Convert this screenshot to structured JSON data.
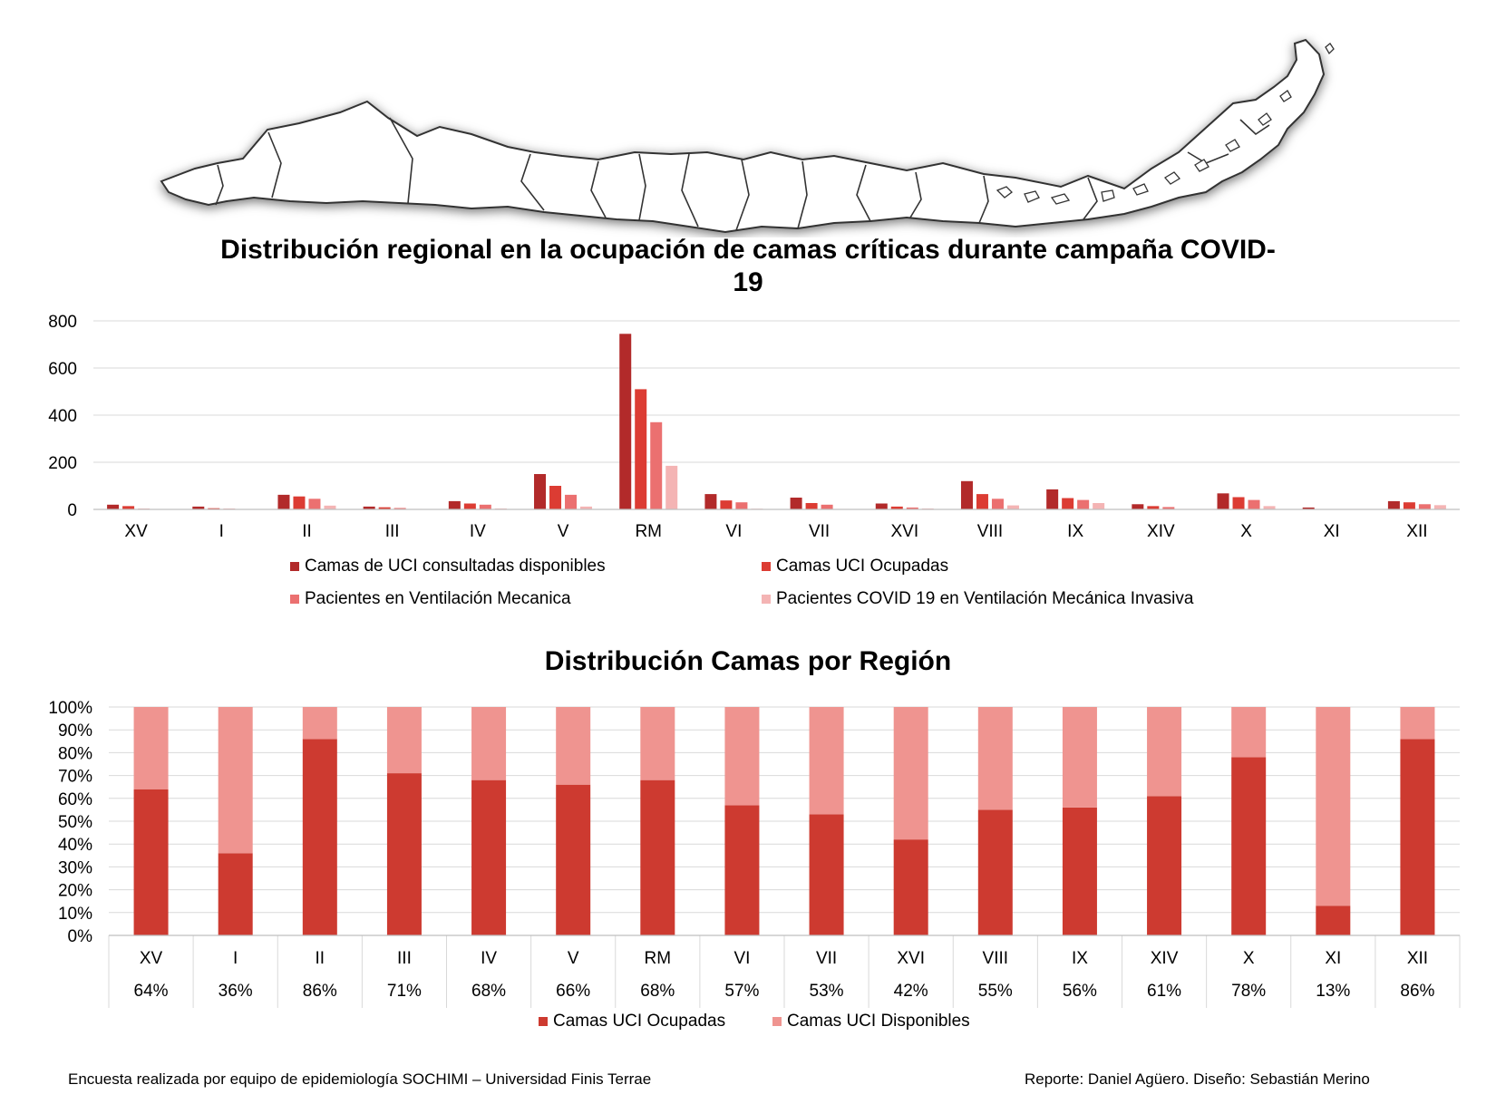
{
  "chart_data": [
    {
      "type": "bar",
      "title": "Distribución regional en la ocupación de camas críticas durante campaña COVID-19",
      "title_lines": [
        "Distribución regional en la ocupación de camas críticas durante campaña COVID-",
        "19"
      ],
      "categories": [
        "XV",
        "I",
        "II",
        "III",
        "IV",
        "V",
        "RM",
        "VI",
        "VII",
        "XVI",
        "VIII",
        "IX",
        "XIV",
        "X",
        "XI",
        "XII"
      ],
      "ylim": [
        0,
        800
      ],
      "yticks": [
        0,
        200,
        400,
        600,
        800
      ],
      "grid": true,
      "legend_position": "bottom",
      "series": [
        {
          "name": "Camas de UCI consultadas disponibles",
          "color": "#b22a2a",
          "values": [
            20,
            12,
            62,
            12,
            35,
            150,
            745,
            65,
            50,
            25,
            120,
            85,
            22,
            68,
            8,
            35
          ]
        },
        {
          "name": "Camas UCI Ocupadas",
          "color": "#dc3c33",
          "values": [
            14,
            5,
            55,
            9,
            25,
            100,
            510,
            38,
            27,
            12,
            65,
            48,
            14,
            52,
            1,
            30
          ]
        },
        {
          "name": "Pacientes en Ventilación Mecanica",
          "color": "#eb7070",
          "values": [
            3,
            3,
            45,
            6,
            20,
            62,
            370,
            30,
            20,
            8,
            45,
            40,
            10,
            40,
            0,
            22
          ]
        },
        {
          "name": "Pacientes COVID 19 en Ventilación Mecánica Invasiva",
          "color": "#f4b4b4",
          "values": [
            1,
            1,
            16,
            2,
            4,
            12,
            185,
            3,
            2,
            4,
            17,
            27,
            2,
            14,
            0,
            18
          ]
        }
      ]
    },
    {
      "type": "bar",
      "stacked": true,
      "percent": true,
      "title": "Distribución Camas por Región",
      "categories": [
        "XV",
        "I",
        "II",
        "III",
        "IV",
        "V",
        "RM",
        "VI",
        "VII",
        "XVI",
        "VIII",
        "IX",
        "XIV",
        "X",
        "XI",
        "XII"
      ],
      "ylim": [
        0,
        100
      ],
      "yticks": [
        "0%",
        "10%",
        "20%",
        "30%",
        "40%",
        "50%",
        "60%",
        "70%",
        "80%",
        "90%",
        "100%"
      ],
      "grid": true,
      "legend_position": "bottom",
      "table_row": [
        "64%",
        "36%",
        "86%",
        "71%",
        "68%",
        "66%",
        "68%",
        "57%",
        "53%",
        "42%",
        "55%",
        "56%",
        "61%",
        "78%",
        "13%",
        "86%"
      ],
      "series": [
        {
          "name": "Camas UCI Ocupadas",
          "color": "#cd3a30",
          "values": [
            64,
            36,
            86,
            71,
            68,
            66,
            68,
            57,
            53,
            42,
            55,
            56,
            61,
            78,
            13,
            86
          ]
        },
        {
          "name": "Camas UCI Disponibles",
          "color": "#ef9490",
          "values": [
            36,
            64,
            14,
            29,
            32,
            34,
            32,
            43,
            47,
            58,
            45,
            44,
            39,
            22,
            87,
            14
          ]
        }
      ]
    }
  ],
  "map": {
    "icon": "chile-map-outline-icon"
  },
  "footer": {
    "left": "Encuesta realizada por equipo de epidemiología SOCHIMI – Universidad Finis Terrae",
    "right": "Reporte: Daniel Agüero. Diseño: Sebastián Merino"
  }
}
